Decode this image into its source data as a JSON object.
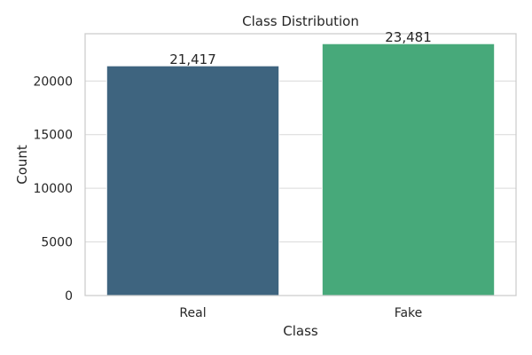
{
  "chart_data": {
    "type": "bar",
    "title": "Class Distribution",
    "xlabel": "Class",
    "ylabel": "Count",
    "categories": [
      "Real",
      "Fake"
    ],
    "values": [
      21417,
      23481
    ],
    "value_labels": [
      "21,417",
      "23,481"
    ],
    "colors": [
      "#3e647f",
      "#47a97a"
    ],
    "ylim": [
      0,
      24410
    ],
    "yticks": [
      0,
      5000,
      10000,
      15000,
      20000
    ],
    "ytick_labels": [
      "0",
      "5000",
      "10000",
      "15000",
      "20000"
    ],
    "grid": true,
    "legend": "none"
  }
}
